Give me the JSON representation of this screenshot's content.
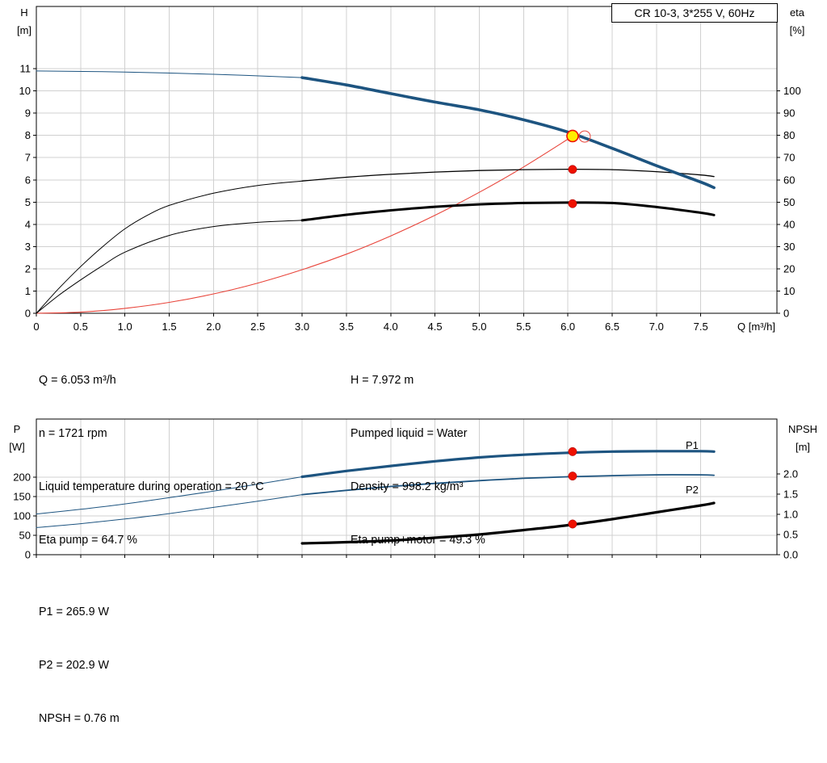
{
  "title_box": "CR 10-3, 3*255 V, 60Hz",
  "colors": {
    "blue": "#1d5480",
    "black": "#000000",
    "red": "#e8443a",
    "dot_red": "#ee1100",
    "duty_yellow": "#ffed00",
    "grid": "#d0d0d0",
    "axis": "#000000"
  },
  "top_info": {
    "left": [
      "Q = 6.053 m³/h",
      "n = 1721 rpm",
      "Liquid temperature during operation = 20 °C",
      "Eta pump = 64.7 %"
    ],
    "right": [
      "H = 7.972 m",
      "Pumped liquid = Water",
      "Density = 998.2 kg/m³",
      "Eta pump+motor = 49.3 %"
    ]
  },
  "bottom_info": [
    "P1 = 265.9 W",
    "P2 = 202.9 W",
    "NPSH = 0.76 m"
  ],
  "chart_data": [
    {
      "type": "line",
      "title": "CR 10-3, 3*255 V, 60Hz",
      "x_axis": {
        "title": "Q [m³/h]",
        "min": 0,
        "max": 8.36,
        "ticks": [
          {
            "v": 0,
            "t": "0"
          },
          {
            "v": 0.5,
            "t": "0.5"
          },
          {
            "v": 1,
            "t": "1.0"
          },
          {
            "v": 1.5,
            "t": "1.5"
          },
          {
            "v": 2,
            "t": "2.0"
          },
          {
            "v": 2.5,
            "t": "2.5"
          },
          {
            "v": 3,
            "t": "3.0"
          },
          {
            "v": 3.5,
            "t": "3.5"
          },
          {
            "v": 4,
            "t": "4.0"
          },
          {
            "v": 4.5,
            "t": "4.5"
          },
          {
            "v": 5,
            "t": "5.0"
          },
          {
            "v": 5.5,
            "t": "5.5"
          },
          {
            "v": 6,
            "t": "6.0"
          },
          {
            "v": 6.5,
            "t": "6.5"
          },
          {
            "v": 7,
            "t": "7.0"
          },
          {
            "v": 7.5,
            "t": "7.5"
          }
        ]
      },
      "y_left": {
        "title": [
          "H",
          "[m]"
        ],
        "min": 0,
        "max": 13.8,
        "ticks": [
          {
            "v": 0,
            "t": "0"
          },
          {
            "v": 1,
            "t": "1"
          },
          {
            "v": 2,
            "t": "2"
          },
          {
            "v": 3,
            "t": "3"
          },
          {
            "v": 4,
            "t": "4"
          },
          {
            "v": 5,
            "t": "5"
          },
          {
            "v": 6,
            "t": "6"
          },
          {
            "v": 7,
            "t": "7"
          },
          {
            "v": 8,
            "t": "8"
          },
          {
            "v": 9,
            "t": "9"
          },
          {
            "v": 10,
            "t": "10"
          },
          {
            "v": 11,
            "t": "11"
          }
        ]
      },
      "y_right": {
        "title": [
          "eta",
          "[%]"
        ],
        "min": 0,
        "max": 138,
        "ticks": [
          {
            "v": 0,
            "t": "0"
          },
          {
            "v": 10,
            "t": "10"
          },
          {
            "v": 20,
            "t": "20"
          },
          {
            "v": 30,
            "t": "30"
          },
          {
            "v": 40,
            "t": "40"
          },
          {
            "v": 50,
            "t": "50"
          },
          {
            "v": 60,
            "t": "60"
          },
          {
            "v": 70,
            "t": "70"
          },
          {
            "v": 80,
            "t": "80"
          },
          {
            "v": 90,
            "t": "90"
          },
          {
            "v": 100,
            "t": "100"
          }
        ]
      },
      "series": [
        {
          "name": "system-curve",
          "axis": "left",
          "color": "red",
          "width": 1.1,
          "points": [
            [
              0,
              0
            ],
            [
              0.5,
              0.05
            ],
            [
              1,
              0.22
            ],
            [
              1.5,
              0.49
            ],
            [
              2,
              0.87
            ],
            [
              2.5,
              1.36
            ],
            [
              3,
              1.96
            ],
            [
              3.5,
              2.66
            ],
            [
              4,
              3.48
            ],
            [
              4.5,
              4.41
            ],
            [
              5,
              5.44
            ],
            [
              5.5,
              6.58
            ],
            [
              6,
              7.83
            ],
            [
              6.053,
              7.97
            ]
          ]
        },
        {
          "name": "eta-pump-motor-lead",
          "axis": "right",
          "color": "black",
          "width": 1,
          "points": [
            [
              0,
              0
            ],
            [
              0.25,
              8
            ],
            [
              0.5,
              15
            ],
            [
              0.75,
              21.5
            ],
            [
              1,
              27.5
            ],
            [
              1.5,
              35
            ],
            [
              2,
              39
            ],
            [
              2.5,
              40.9
            ],
            [
              3,
              41.8
            ]
          ]
        },
        {
          "name": "eta-pump-motor-curve",
          "axis": "right",
          "color": "black",
          "width": 3,
          "points": [
            [
              3,
              41.8
            ],
            [
              3.5,
              44.3
            ],
            [
              4,
              46.3
            ],
            [
              4.5,
              47.9
            ],
            [
              5,
              49
            ],
            [
              5.5,
              49.6
            ],
            [
              6,
              49.8
            ],
            [
              6.5,
              49.6
            ],
            [
              7,
              47.8
            ],
            [
              7.5,
              45.2
            ],
            [
              7.65,
              44.2
            ]
          ]
        },
        {
          "name": "eta-pump-lead",
          "axis": "right",
          "color": "black",
          "width": 1,
          "points": [
            [
              0,
              0
            ],
            [
              0.25,
              11
            ],
            [
              0.5,
              21
            ],
            [
              0.75,
              30
            ],
            [
              1,
              38
            ],
            [
              1.25,
              44
            ],
            [
              1.5,
              48.5
            ],
            [
              2,
              54
            ],
            [
              2.5,
              57.5
            ],
            [
              3,
              59.5
            ]
          ]
        },
        {
          "name": "eta-pump-curve",
          "axis": "right",
          "color": "black",
          "width": 1.3,
          "points": [
            [
              3,
              59.5
            ],
            [
              3.5,
              61.2
            ],
            [
              4,
              62.5
            ],
            [
              4.5,
              63.5
            ],
            [
              5,
              64.2
            ],
            [
              5.5,
              64.6
            ],
            [
              6,
              64.8
            ],
            [
              6.5,
              64.6
            ],
            [
              7,
              63.7
            ],
            [
              7.5,
              62.2
            ],
            [
              7.65,
              61.5
            ]
          ]
        },
        {
          "name": "head-curve-lead",
          "axis": "left",
          "color": "blue",
          "width": 1,
          "points": [
            [
              0,
              10.9
            ],
            [
              1,
              10.85
            ],
            [
              2,
              10.75
            ],
            [
              3,
              10.6
            ]
          ]
        },
        {
          "name": "head-curve",
          "axis": "left",
          "color": "blue",
          "width": 3.6,
          "points": [
            [
              3,
              10.6
            ],
            [
              3.5,
              10.27
            ],
            [
              4,
              9.88
            ],
            [
              4.5,
              9.5
            ],
            [
              5,
              9.15
            ],
            [
              5.5,
              8.7
            ],
            [
              6,
              8.15
            ],
            [
              6.5,
              7.42
            ],
            [
              7,
              6.64
            ],
            [
              7.5,
              5.9
            ],
            [
              7.65,
              5.65
            ]
          ]
        }
      ],
      "markers": [
        {
          "name": "duty-point-outline",
          "type": "open",
          "axis": "left",
          "x": 6.19,
          "y": 7.95
        },
        {
          "name": "eta-pump-point",
          "type": "dot",
          "axis": "right",
          "x": 6.053,
          "y": 64.7
        },
        {
          "name": "eta-pump-motor-point",
          "type": "dot",
          "axis": "right",
          "x": 6.053,
          "y": 49.3
        },
        {
          "name": "duty-point",
          "type": "duty",
          "axis": "left",
          "x": 6.053,
          "y": 7.972
        }
      ],
      "labels": []
    },
    {
      "type": "line",
      "x_axis": {
        "min": 0,
        "max": 8.36,
        "ticks": [
          {
            "v": 0
          },
          {
            "v": 0.5
          },
          {
            "v": 1
          },
          {
            "v": 1.5
          },
          {
            "v": 2
          },
          {
            "v": 2.5
          },
          {
            "v": 3
          },
          {
            "v": 3.5
          },
          {
            "v": 4
          },
          {
            "v": 4.5
          },
          {
            "v": 5
          },
          {
            "v": 5.5
          },
          {
            "v": 6
          },
          {
            "v": 6.5
          },
          {
            "v": 7
          },
          {
            "v": 7.5
          }
        ]
      },
      "y_left": {
        "title": [
          "P",
          "[W]"
        ],
        "min": 0,
        "max": 350,
        "ticks": [
          {
            "v": 0,
            "t": "0"
          },
          {
            "v": 50,
            "t": "50"
          },
          {
            "v": 100,
            "t": "100"
          },
          {
            "v": 150,
            "t": "150"
          },
          {
            "v": 200,
            "t": "200"
          }
        ]
      },
      "y_right": {
        "title": [
          "NPSH",
          "[m]"
        ],
        "min": 0,
        "max": 3.36,
        "ticks": [
          {
            "v": 0,
            "t": "0.0"
          },
          {
            "v": 0.5,
            "t": "0.5"
          },
          {
            "v": 1,
            "t": "1.0"
          },
          {
            "v": 1.5,
            "t": "1.5"
          },
          {
            "v": 2,
            "t": "2.0"
          }
        ]
      },
      "series": [
        {
          "name": "p2-power-lead",
          "axis": "left",
          "color": "blue",
          "width": 1,
          "points": [
            [
              0,
              70
            ],
            [
              0.5,
              80
            ],
            [
              1,
              92
            ],
            [
              1.5,
              106
            ],
            [
              2,
              122
            ],
            [
              2.5,
              138
            ],
            [
              3,
              155
            ]
          ]
        },
        {
          "name": "p2-power-curve",
          "axis": "left",
          "color": "blue",
          "width": 1.8,
          "points": [
            [
              3,
              155
            ],
            [
              3.5,
              166
            ],
            [
              4,
              176
            ],
            [
              4.5,
              184
            ],
            [
              5,
              191
            ],
            [
              5.5,
              197
            ],
            [
              6,
              201
            ],
            [
              6.5,
              204
            ],
            [
              7,
              206
            ],
            [
              7.5,
              206
            ],
            [
              7.65,
              205
            ]
          ]
        },
        {
          "name": "p1-power-lead",
          "axis": "left",
          "color": "blue",
          "width": 1,
          "points": [
            [
              0,
              105
            ],
            [
              0.5,
              117
            ],
            [
              1,
              131
            ],
            [
              1.5,
              147
            ],
            [
              2,
              164
            ],
            [
              2.5,
              182
            ],
            [
              3,
              201
            ]
          ]
        },
        {
          "name": "p1-power-curve",
          "axis": "left",
          "color": "blue",
          "width": 3.2,
          "points": [
            [
              3,
              201
            ],
            [
              3.5,
              216
            ],
            [
              4,
              229
            ],
            [
              4.5,
              241
            ],
            [
              5,
              251
            ],
            [
              5.5,
              258
            ],
            [
              6,
              263
            ],
            [
              6.5,
              266
            ],
            [
              7,
              267
            ],
            [
              7.5,
              267
            ],
            [
              7.65,
              266
            ]
          ]
        },
        {
          "name": "npsh-curve",
          "axis": "right",
          "color": "black",
          "width": 3.2,
          "points": [
            [
              3,
              0.28
            ],
            [
              3.5,
              0.31
            ],
            [
              4,
              0.35
            ],
            [
              4.5,
              0.42
            ],
            [
              5,
              0.5
            ],
            [
              5.5,
              0.61
            ],
            [
              6,
              0.73
            ],
            [
              6.5,
              0.88
            ],
            [
              7,
              1.05
            ],
            [
              7.5,
              1.22
            ],
            [
              7.65,
              1.28
            ]
          ]
        }
      ],
      "markers": [
        {
          "name": "p1-point",
          "type": "dot",
          "axis": "left",
          "x": 6.053,
          "y": 265.9
        },
        {
          "name": "p2-point",
          "type": "dot",
          "axis": "left",
          "x": 6.053,
          "y": 202.9
        },
        {
          "name": "npsh-point",
          "type": "dot",
          "axis": "right",
          "x": 6.053,
          "y": 0.76
        }
      ],
      "labels": [
        {
          "name": "p1-label",
          "text": "P1",
          "axis": "left",
          "x": 7.33,
          "y": 273,
          "color": "blue"
        },
        {
          "name": "p2-label",
          "text": "P2",
          "axis": "left",
          "x": 7.33,
          "y": 158,
          "color": "blue"
        }
      ]
    }
  ]
}
